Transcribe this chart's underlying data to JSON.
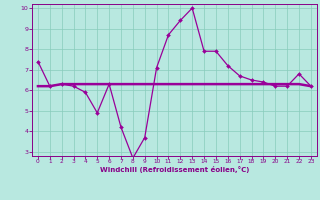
{
  "x": [
    0,
    1,
    2,
    3,
    4,
    5,
    6,
    7,
    8,
    9,
    10,
    11,
    12,
    13,
    14,
    15,
    16,
    17,
    18,
    19,
    20,
    21,
    22,
    23
  ],
  "y_windchill": [
    7.4,
    6.2,
    6.3,
    6.2,
    5.9,
    4.9,
    6.3,
    4.2,
    2.7,
    3.7,
    7.1,
    8.7,
    9.4,
    10.0,
    7.9,
    7.9,
    7.2,
    6.7,
    6.5,
    6.4,
    6.2,
    6.2,
    6.8,
    6.2
  ],
  "y_flat": [
    6.2,
    6.2,
    6.3,
    6.3,
    6.3,
    6.3,
    6.3,
    6.3,
    6.3,
    6.3,
    6.3,
    6.3,
    6.3,
    6.3,
    6.3,
    6.3,
    6.3,
    6.3,
    6.3,
    6.3,
    6.3,
    6.3,
    6.3,
    6.2
  ],
  "line_color": "#990099",
  "bg_color": "#b8e8e0",
  "grid_color": "#88ccbb",
  "axis_color": "#880088",
  "xlabel": "Windchill (Refroidissement éolien,°C)",
  "xlim_min": -0.5,
  "xlim_max": 23.5,
  "ylim_min": 2.8,
  "ylim_max": 10.2,
  "yticks": [
    3,
    4,
    5,
    6,
    7,
    8,
    9,
    10
  ],
  "xticks": [
    0,
    1,
    2,
    3,
    4,
    5,
    6,
    7,
    8,
    9,
    10,
    11,
    12,
    13,
    14,
    15,
    16,
    17,
    18,
    19,
    20,
    21,
    22,
    23
  ]
}
